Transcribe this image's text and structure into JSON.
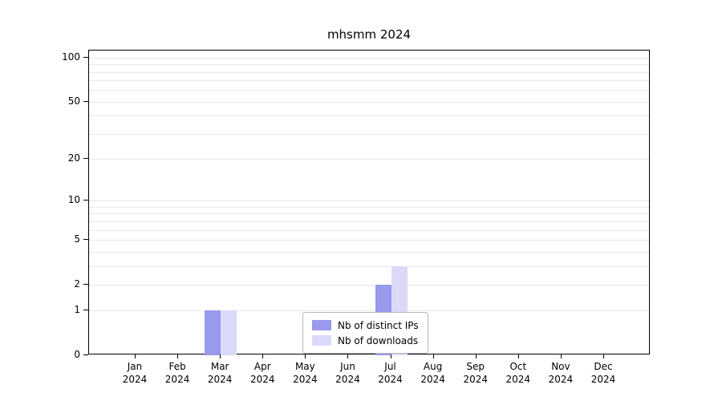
{
  "title": "mhsmm 2024",
  "colors": {
    "distinct_ips": "#9999ee",
    "downloads": "#dadaf8",
    "gridline": "#e7e7e7",
    "axis": "#000000",
    "legend_border": "#b5b5b5",
    "background": "#ffffff"
  },
  "chart_data": {
    "type": "bar",
    "title": "mhsmm 2024",
    "xlabel": "",
    "ylabel": "",
    "categories": [
      "Jan 2024",
      "Feb 2024",
      "Mar 2024",
      "Apr 2024",
      "May 2024",
      "Jun 2024",
      "Jul 2024",
      "Aug 2024",
      "Sep 2024",
      "Oct 2024",
      "Nov 2024",
      "Dec 2024"
    ],
    "series": [
      {
        "name": "Nb of distinct IPs",
        "color": "#9999ee",
        "values": [
          0,
          0,
          1,
          0,
          0,
          0,
          2,
          0,
          0,
          0,
          0,
          0
        ]
      },
      {
        "name": "Nb of downloads",
        "color": "#dadaf8",
        "values": [
          0,
          0,
          1,
          0,
          0,
          0,
          3,
          0,
          0,
          0,
          0,
          0
        ]
      }
    ],
    "yticks": [
      0,
      1,
      2,
      5,
      10,
      20,
      50,
      100
    ],
    "minor_gridlines": [
      1,
      2,
      3,
      4,
      5,
      6,
      7,
      8,
      9,
      10,
      20,
      30,
      40,
      50,
      60,
      70,
      80,
      90,
      100
    ],
    "scale": "log1p",
    "ylim": [
      0,
      112
    ],
    "grid": true,
    "legend_position": "bottom-center"
  }
}
